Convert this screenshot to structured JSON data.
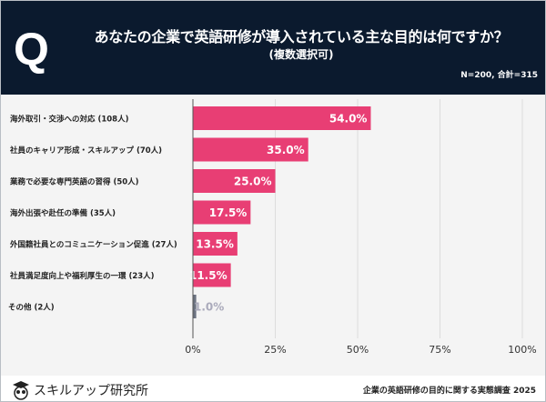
{
  "header": {
    "q_mark": "Q",
    "title": "あなたの企業で英語研修が導入されている主な目的は何ですか？",
    "subtitle": "(複数選択可)",
    "sample": "N=200, 合計=315"
  },
  "colors": {
    "header_bg": "#0b1a2e",
    "bar": "#e83e74",
    "other_bar": "#6b7280",
    "plot_bg": "#f4f4f4"
  },
  "chart_data": {
    "type": "bar",
    "orientation": "horizontal",
    "categories": [
      "海外取引・交渉への対応 (108人)",
      "社員のキャリア形成・スキルアップ (70人)",
      "業務で必要な専門英語の習得 (50人)",
      "海外出張や赴任の準備 (35人)",
      "外国籍社員とのコミュニケーション促進 (27人)",
      "社員満足度向上や福利厚生の一環 (23人)",
      "その他 (2人)"
    ],
    "values": [
      54.0,
      35.0,
      25.0,
      17.5,
      13.5,
      11.5,
      1.0
    ],
    "data_labels": [
      "54.0%",
      "35.0%",
      "25.0%",
      "17.5%",
      "13.5%",
      "11.5%",
      "1.0%"
    ],
    "xlim": [
      0,
      100
    ],
    "xticks": [
      "0%",
      "25%",
      "50%",
      "75%",
      "100%"
    ],
    "grid": true
  },
  "footer": {
    "brand": "スキルアップ研究所",
    "source": "企業の英語研修の目的に関する実態調査 2025"
  }
}
